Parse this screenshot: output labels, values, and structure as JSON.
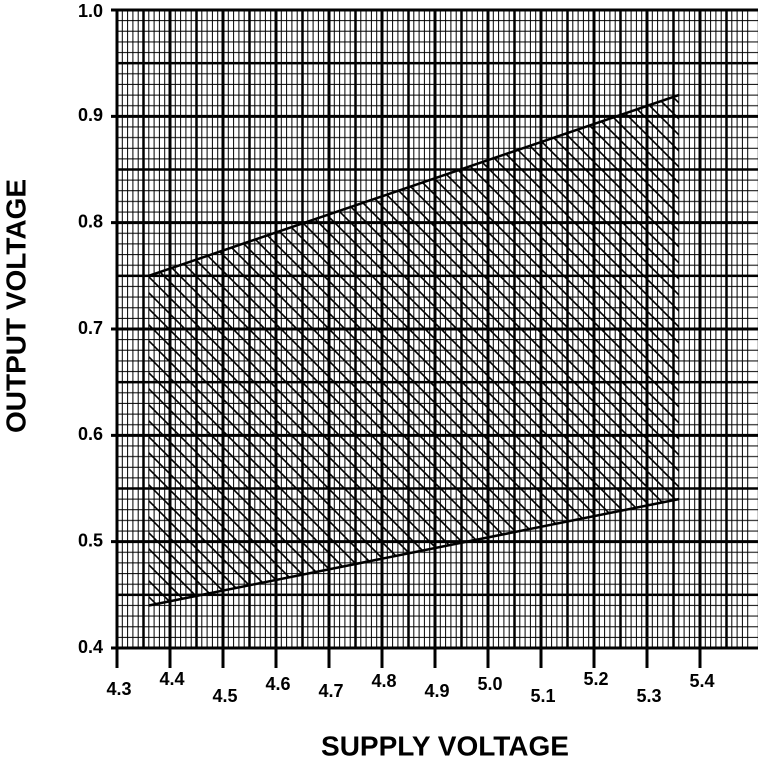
{
  "chart_data": {
    "type": "band",
    "xlabel": "SUPPLY VOLTAGE",
    "ylabel": "OUTPUT VOLTAGE",
    "xlim": [
      4.3,
      5.5
    ],
    "ylim": [
      0.4,
      1.0
    ],
    "xticks": [
      4.3,
      4.4,
      4.5,
      4.6,
      4.7,
      4.8,
      4.9,
      {
        "value": 5,
        "label": "5.0"
      },
      5.1,
      5.2,
      5.3,
      5.4
    ],
    "yticks": [
      0.4,
      0.5,
      0.6,
      0.7,
      0.8,
      0.9,
      {
        "value": 1,
        "label": "1.0"
      }
    ],
    "x": [
      4.36,
      5.36
    ],
    "upper": [
      0.75,
      0.92
    ],
    "lower": [
      0.44,
      0.54
    ],
    "color": "#000000",
    "grid": true
  }
}
